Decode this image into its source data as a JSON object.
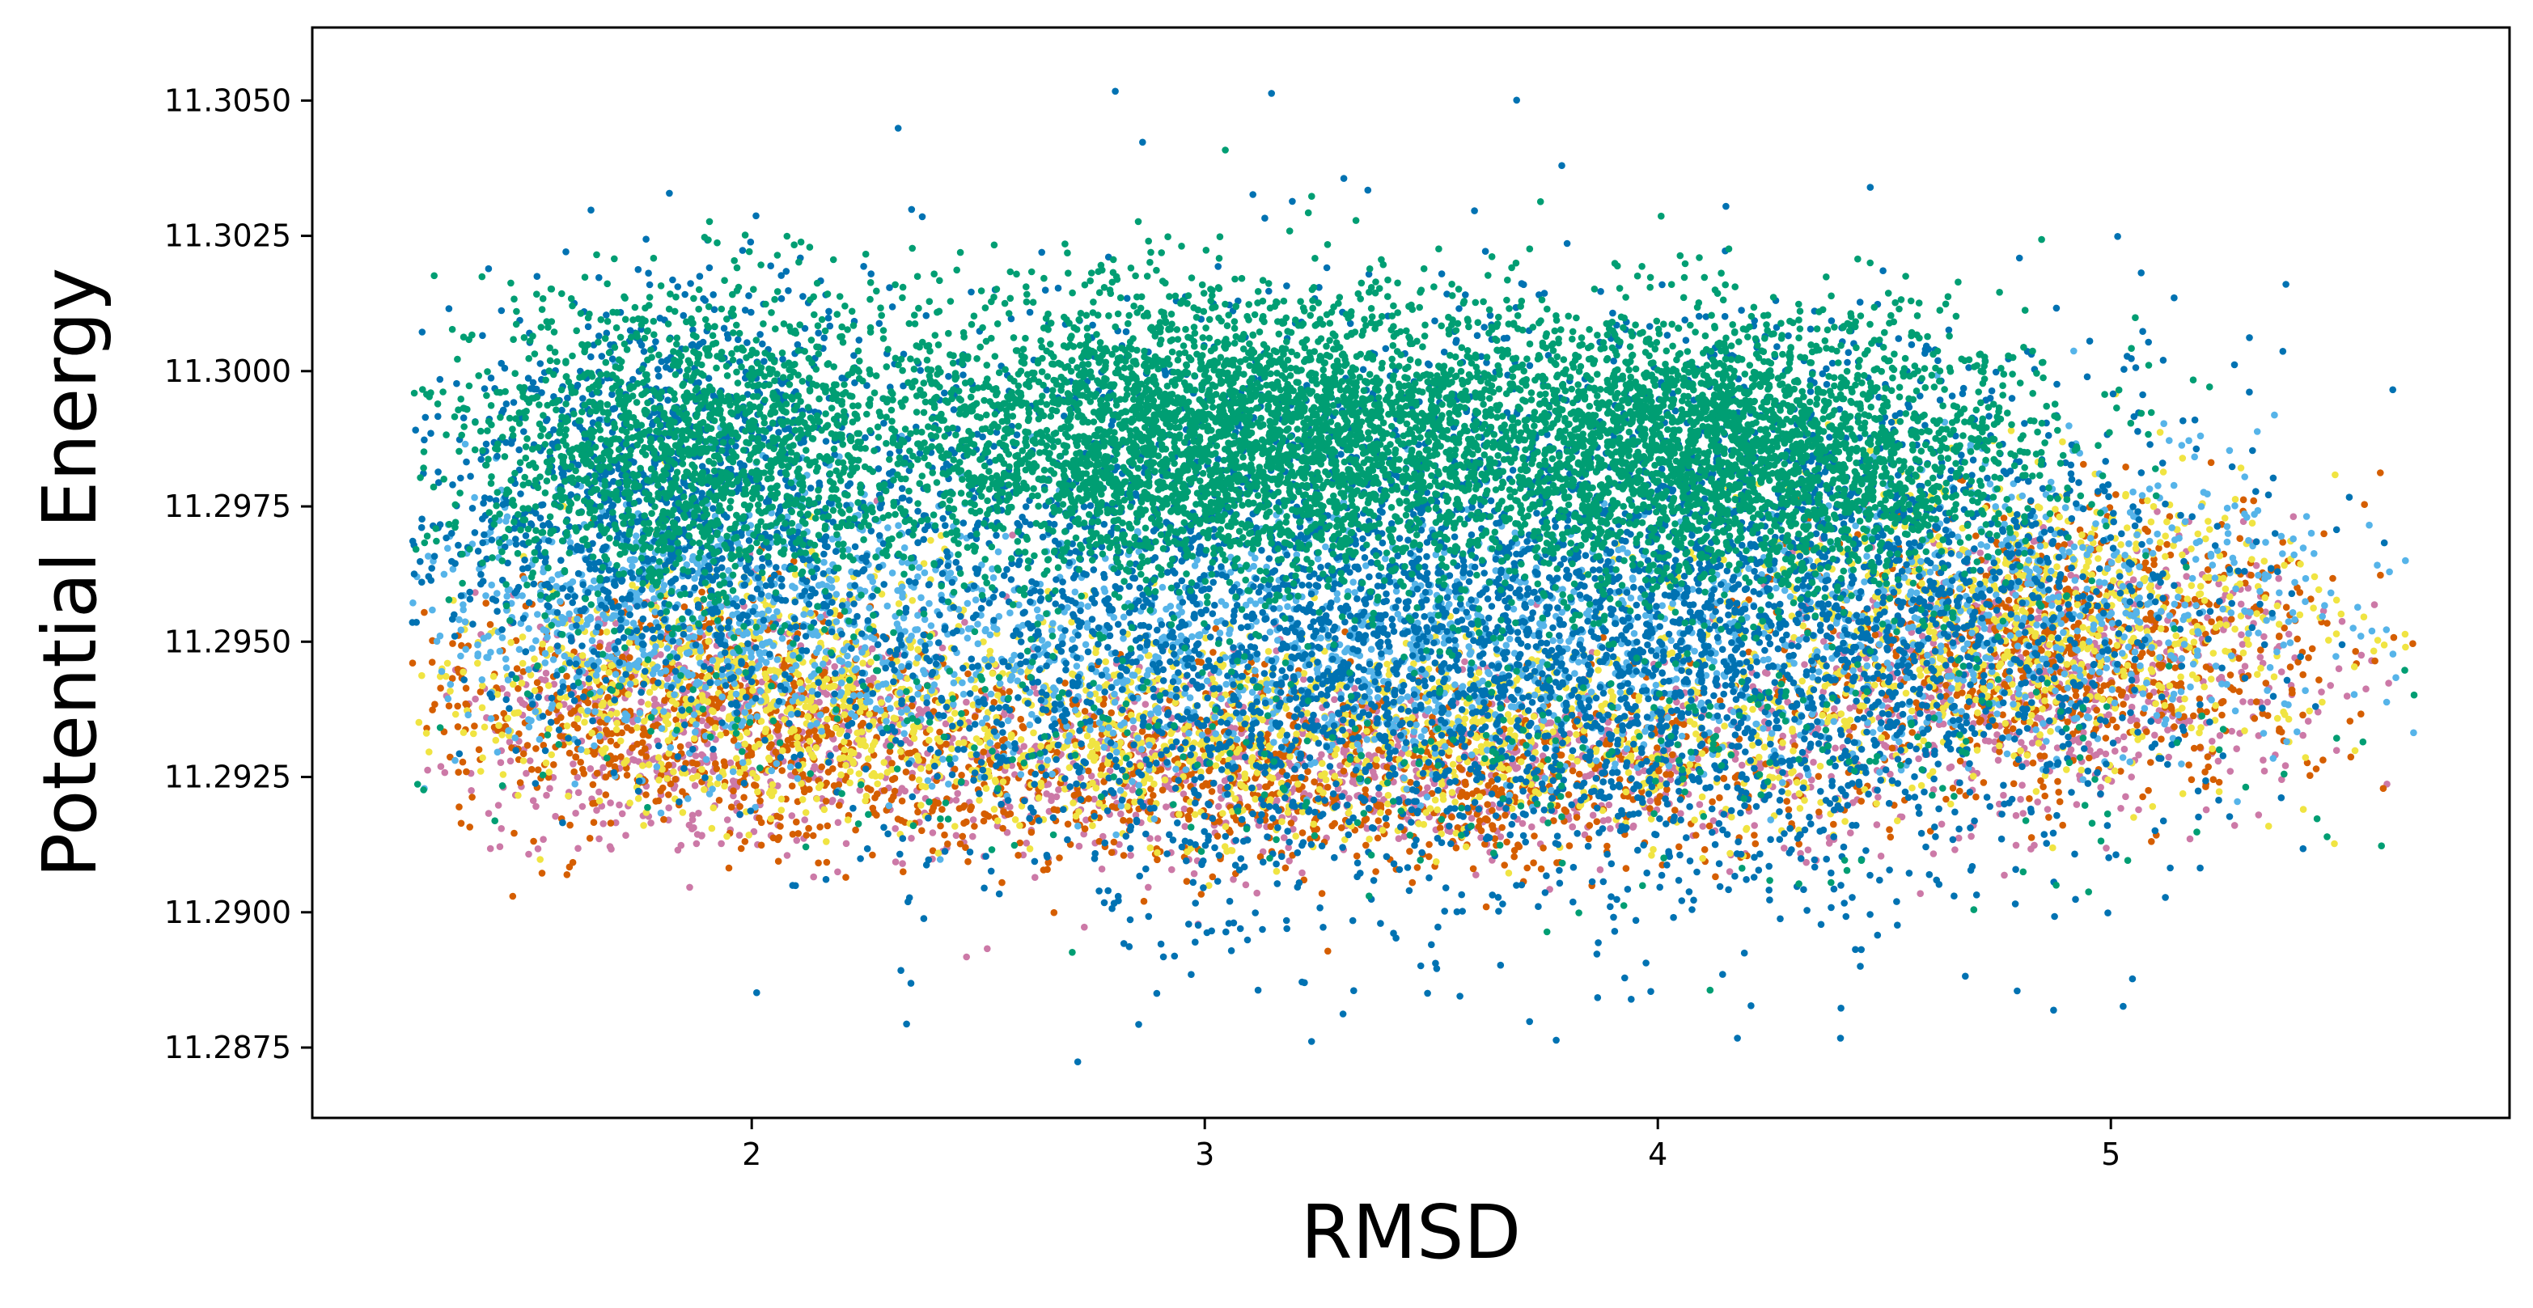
{
  "chart_data": {
    "type": "scatter",
    "title": "",
    "xlabel": "RMSD",
    "ylabel": "Potential Energy",
    "xlim": [
      1.03,
      5.88
    ],
    "ylim": [
      11.2862,
      11.30635
    ],
    "x_ticks": [
      2,
      3,
      4,
      5
    ],
    "x_tick_labels": [
      "2",
      "3",
      "4",
      "5"
    ],
    "y_ticks": [
      11.2875,
      11.29,
      11.2925,
      11.295,
      11.2975,
      11.3,
      11.3025,
      11.305
    ],
    "y_tick_labels": [
      "11.2875",
      "11.2900",
      "11.2925",
      "11.2950",
      "11.2975",
      "11.3000",
      "11.3025",
      "11.3050"
    ],
    "grid": false,
    "legend": "none",
    "marker_size_approx": "small dots",
    "series": [
      {
        "color": "#CC79A7",
        "estimated_distribution": [
          {
            "x_mean": 1.9,
            "x_sd": 0.28,
            "y_mean": 11.2935,
            "y_sd": 0.0011,
            "weight": 0.25
          },
          {
            "x_mean": 3.3,
            "x_sd": 0.65,
            "y_mean": 11.2927,
            "y_sd": 0.0009,
            "weight": 0.45
          },
          {
            "x_mean": 4.85,
            "x_sd": 0.3,
            "y_mean": 11.2945,
            "y_sd": 0.0012,
            "weight": 0.3
          }
        ],
        "approx_point_count": 2200
      },
      {
        "color": "#D55E00",
        "estimated_distribution": [
          {
            "x_mean": 1.85,
            "x_sd": 0.3,
            "y_mean": 11.2938,
            "y_sd": 0.0011,
            "weight": 0.25
          },
          {
            "x_mean": 3.2,
            "x_sd": 0.65,
            "y_mean": 11.2925,
            "y_sd": 0.0009,
            "weight": 0.45
          },
          {
            "x_mean": 4.9,
            "x_sd": 0.3,
            "y_mean": 11.295,
            "y_sd": 0.0013,
            "weight": 0.3
          }
        ],
        "approx_point_count": 2400
      },
      {
        "color": "#F0E442",
        "estimated_distribution": [
          {
            "x_mean": 1.95,
            "x_sd": 0.3,
            "y_mean": 11.2942,
            "y_sd": 0.0011,
            "weight": 0.25
          },
          {
            "x_mean": 3.3,
            "x_sd": 0.7,
            "y_mean": 11.2932,
            "y_sd": 0.0009,
            "weight": 0.45
          },
          {
            "x_mean": 4.8,
            "x_sd": 0.35,
            "y_mean": 11.2955,
            "y_sd": 0.0013,
            "weight": 0.3
          }
        ],
        "approx_point_count": 2600
      },
      {
        "color": "#56B4E9",
        "estimated_distribution": [
          {
            "x_mean": 1.9,
            "x_sd": 0.3,
            "y_mean": 11.2955,
            "y_sd": 0.0013,
            "weight": 0.3
          },
          {
            "x_mean": 3.4,
            "x_sd": 0.7,
            "y_mean": 11.2948,
            "y_sd": 0.0012,
            "weight": 0.5
          },
          {
            "x_mean": 4.9,
            "x_sd": 0.35,
            "y_mean": 11.2958,
            "y_sd": 0.0014,
            "weight": 0.2
          }
        ],
        "approx_point_count": 2800
      },
      {
        "color": "#0072B2",
        "estimated_distribution": [
          {
            "x_mean": 1.8,
            "x_sd": 0.28,
            "y_mean": 11.2975,
            "y_sd": 0.0019,
            "weight": 0.2
          },
          {
            "x_mean": 3.2,
            "x_sd": 0.55,
            "y_mean": 11.2955,
            "y_sd": 0.0026,
            "weight": 0.45
          },
          {
            "x_mean": 4.3,
            "x_sd": 0.45,
            "y_mean": 11.2955,
            "y_sd": 0.0025,
            "weight": 0.35
          }
        ],
        "approx_point_count": 6500
      },
      {
        "color": "#009E73",
        "estimated_distribution": [
          {
            "x_mean": 1.85,
            "x_sd": 0.25,
            "y_mean": 11.2985,
            "y_sd": 0.0015,
            "weight": 0.18
          },
          {
            "x_mean": 3.05,
            "x_sd": 0.42,
            "y_mean": 11.2988,
            "y_sd": 0.0013,
            "weight": 0.45
          },
          {
            "x_mean": 4.15,
            "x_sd": 0.33,
            "y_mean": 11.2985,
            "y_sd": 0.0013,
            "weight": 0.32
          },
          {
            "x_mean": 3.5,
            "x_sd": 1.1,
            "y_mean": 11.2935,
            "y_sd": 0.0015,
            "weight": 0.05
          }
        ],
        "approx_point_count": 9000
      }
    ]
  }
}
